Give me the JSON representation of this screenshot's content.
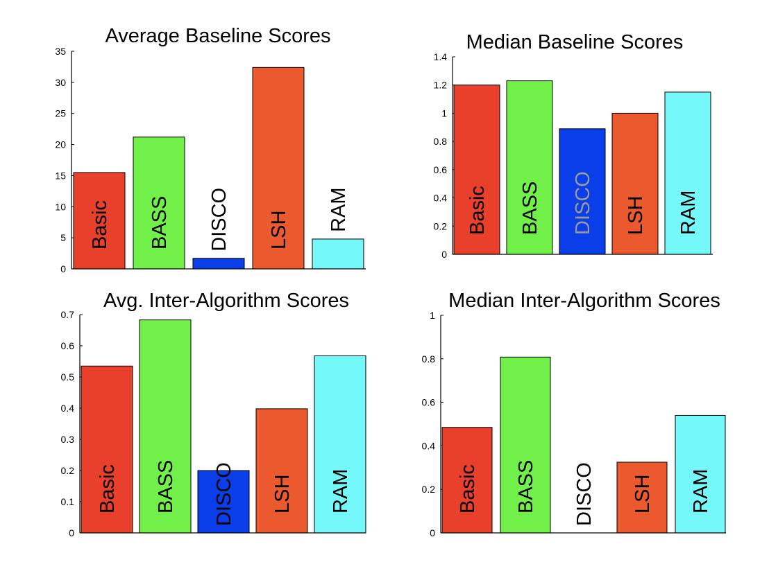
{
  "chart_data": [
    {
      "type": "bar",
      "title": "Average Baseline Scores",
      "categories": [
        "Basic",
        "BASS",
        "DISCO",
        "LSH",
        "RAM"
      ],
      "values": [
        15.5,
        21.2,
        1.7,
        32.4,
        4.8
      ],
      "ylim": [
        0,
        35
      ],
      "yticks": [
        "0",
        "5",
        "10",
        "15",
        "20",
        "25",
        "30",
        "35"
      ],
      "colors": [
        "#e8402a",
        "#72f04a",
        "#0a3ee8",
        "#ea5a2e",
        "#74f8fa"
      ],
      "label_colors": [
        "#000000",
        "#000000",
        "#000000",
        "#000000",
        "#000000"
      ],
      "grid": false
    },
    {
      "type": "bar",
      "title": "Median Baseline Scores",
      "categories": [
        "Basic",
        "BASS",
        "DISCO",
        "LSH",
        "RAM"
      ],
      "values": [
        1.2,
        1.23,
        0.89,
        1.0,
        1.15
      ],
      "ylim": [
        0,
        1.4
      ],
      "yticks": [
        "0",
        "0.2",
        "0.4",
        "0.6",
        "0.8",
        "1",
        "1.2",
        "1.4"
      ],
      "colors": [
        "#e8402a",
        "#72f04a",
        "#0a3ee8",
        "#ea5a2e",
        "#74f8fa"
      ],
      "label_colors": [
        "#000000",
        "#000000",
        "#9a9a9a",
        "#000000",
        "#000000"
      ],
      "grid": false
    },
    {
      "type": "bar",
      "title": "Avg. Inter-Algorithm Scores",
      "categories": [
        "Basic",
        "BASS",
        "DISCO",
        "LSH",
        "RAM"
      ],
      "values": [
        0.535,
        0.683,
        0.2,
        0.398,
        0.568
      ],
      "ylim": [
        0,
        0.7
      ],
      "yticks": [
        "0",
        "0.1",
        "0.2",
        "0.3",
        "0.4",
        "0.5",
        "0.6",
        "0.7"
      ],
      "colors": [
        "#e8402a",
        "#72f04a",
        "#0a3ee8",
        "#ea5a2e",
        "#74f8fa"
      ],
      "label_colors": [
        "#000000",
        "#000000",
        "#000000",
        "#000000",
        "#000000"
      ],
      "grid": false
    },
    {
      "type": "bar",
      "title": "Median Inter-Algorithm Scores",
      "categories": [
        "Basic",
        "BASS",
        "DISCO",
        "LSH",
        "RAM"
      ],
      "values": [
        0.485,
        0.808,
        0.0,
        0.325,
        0.54
      ],
      "ylim": [
        0,
        1
      ],
      "yticks": [
        "0",
        "0.2",
        "0.4",
        "0.6",
        "0.8",
        "1"
      ],
      "colors": [
        "#e8402a",
        "#72f04a",
        "#0a3ee8",
        "#ea5a2e",
        "#74f8fa"
      ],
      "label_colors": [
        "#000000",
        "#000000",
        "#000000",
        "#000000",
        "#000000"
      ],
      "grid": false
    }
  ]
}
